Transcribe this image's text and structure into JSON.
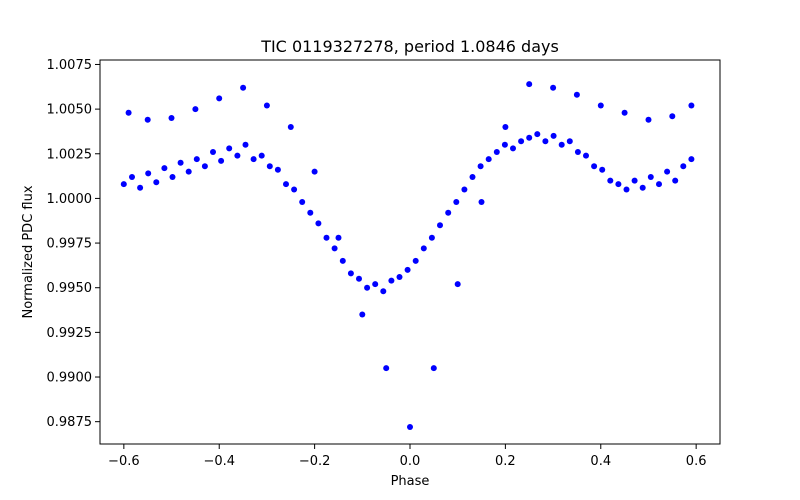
{
  "chart_data": {
    "type": "scatter",
    "title": "TIC 0119327278, period 1.0846 days",
    "xlabel": "Phase",
    "ylabel": "Normalized PDC flux",
    "xlim": [
      -0.65,
      0.65
    ],
    "ylim": [
      0.98625,
      1.00775
    ],
    "xticks": [
      -0.6,
      -0.4,
      -0.2,
      0.0,
      0.2,
      0.4,
      0.6
    ],
    "xtick_labels": [
      "−0.6",
      "−0.4",
      "−0.2",
      "0.0",
      "0.2",
      "0.4",
      "0.6"
    ],
    "yticks": [
      0.9875,
      0.99,
      0.9925,
      0.995,
      0.9975,
      1.0,
      1.0025,
      1.005,
      1.0075
    ],
    "ytick_labels": [
      "0.9875",
      "0.9900",
      "0.9925",
      "0.9950",
      "0.9975",
      "1.0000",
      "1.0025",
      "1.0050",
      "1.0075"
    ],
    "grid": false,
    "legend": "none",
    "marker_color": "#0000ff",
    "series": [
      {
        "x": [
          -0.6,
          -0.583,
          -0.566,
          -0.549,
          -0.532,
          -0.515,
          -0.498,
          -0.481,
          -0.464,
          -0.447,
          -0.43,
          -0.413,
          -0.396,
          -0.379,
          -0.362,
          -0.345,
          -0.328,
          -0.311,
          -0.294,
          -0.277,
          -0.26,
          -0.243,
          -0.226,
          -0.209,
          -0.192,
          -0.175,
          -0.158,
          -0.141,
          -0.124,
          -0.107,
          -0.09,
          -0.073,
          -0.056,
          -0.039,
          -0.022,
          -0.005,
          0.012,
          0.029,
          0.046,
          0.063,
          0.08,
          0.097,
          0.114,
          0.131,
          0.148,
          0.165,
          0.182,
          0.199,
          0.216,
          0.233,
          0.25,
          0.267,
          0.284,
          0.301,
          0.318,
          0.335,
          0.352,
          0.369,
          0.386,
          0.403,
          0.42,
          0.437,
          0.454,
          0.471,
          0.488,
          0.505,
          0.522,
          0.539,
          0.556,
          0.573,
          0.59,
          -0.59,
          -0.55,
          -0.5,
          -0.45,
          -0.4,
          -0.35,
          -0.3,
          -0.25,
          -0.2,
          -0.15,
          -0.1,
          -0.05,
          0.0,
          0.05,
          0.1,
          0.15,
          0.2,
          0.25,
          0.3,
          0.35,
          0.4,
          0.45,
          0.5,
          0.55,
          0.59
        ],
        "y": [
          1.0008,
          1.0012,
          1.0006,
          1.0014,
          1.0009,
          1.0017,
          1.0012,
          1.002,
          1.0015,
          1.0022,
          1.0018,
          1.0026,
          1.0021,
          1.0028,
          1.0024,
          1.003,
          1.0022,
          1.0024,
          1.0018,
          1.0016,
          1.0008,
          1.0005,
          0.9998,
          0.9992,
          0.9986,
          0.9978,
          0.9972,
          0.9965,
          0.9958,
          0.9955,
          0.995,
          0.9952,
          0.9948,
          0.9954,
          0.9956,
          0.996,
          0.9965,
          0.9972,
          0.9978,
          0.9985,
          0.9992,
          0.9998,
          1.0005,
          1.0012,
          1.0018,
          1.0022,
          1.0026,
          1.003,
          1.0028,
          1.0032,
          1.0034,
          1.0036,
          1.0032,
          1.0035,
          1.003,
          1.0032,
          1.0026,
          1.0024,
          1.0018,
          1.0016,
          1.001,
          1.0008,
          1.0005,
          1.001,
          1.0006,
          1.0012,
          1.0008,
          1.0015,
          1.001,
          1.0018,
          1.0022,
          1.0048,
          1.0044,
          1.0045,
          1.005,
          1.0056,
          1.0062,
          1.0052,
          1.004,
          1.0015,
          0.9978,
          0.9935,
          0.9905,
          0.9872,
          0.9905,
          0.9952,
          0.9998,
          1.004,
          1.0064,
          1.0062,
          1.0058,
          1.0052,
          1.0048,
          1.0044,
          1.0046,
          1.0052
        ]
      }
    ]
  }
}
